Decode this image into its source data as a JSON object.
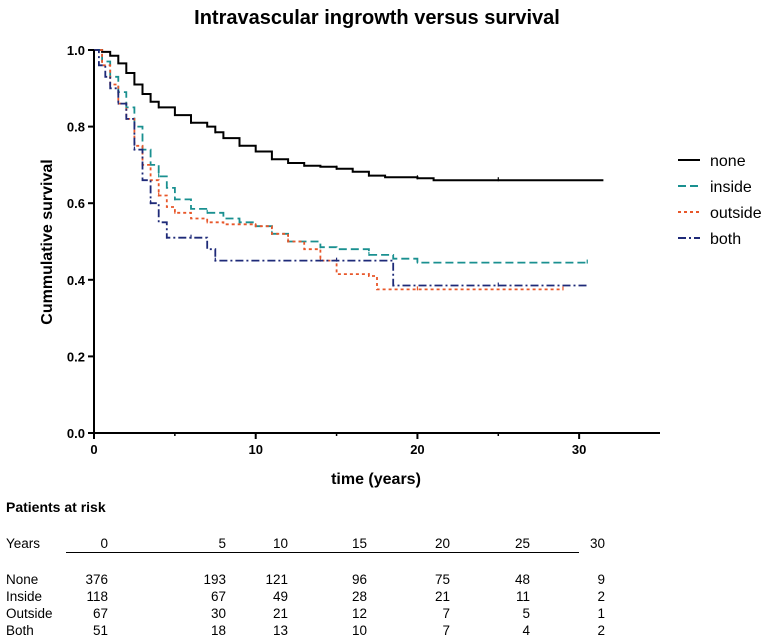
{
  "chart_data": {
    "type": "line",
    "title": "Intravascular ingrowth versus survival",
    "xlabel": "time (years)",
    "ylabel": "Cummulative survival",
    "xlim": [
      0,
      35
    ],
    "ylim": [
      0,
      1.0
    ],
    "xticks": [
      0,
      10,
      20,
      30
    ],
    "yticks": [
      "0.0",
      "0.2",
      "0.4",
      "0.6",
      "0.8",
      "1.0"
    ],
    "grid": false,
    "legend_position": "right",
    "series": [
      {
        "name": "none",
        "color": "#000000",
        "dash": "solid",
        "points": [
          [
            0,
            1.0
          ],
          [
            0.5,
            0.995
          ],
          [
            1,
            0.985
          ],
          [
            1.5,
            0.965
          ],
          [
            2,
            0.94
          ],
          [
            2.5,
            0.91
          ],
          [
            3,
            0.885
          ],
          [
            3.5,
            0.865
          ],
          [
            4,
            0.85
          ],
          [
            5,
            0.83
          ],
          [
            6,
            0.81
          ],
          [
            7,
            0.8
          ],
          [
            7.5,
            0.785
          ],
          [
            8,
            0.77
          ],
          [
            9,
            0.75
          ],
          [
            10,
            0.735
          ],
          [
            11,
            0.715
          ],
          [
            12,
            0.705
          ],
          [
            13,
            0.698
          ],
          [
            14,
            0.695
          ],
          [
            15,
            0.69
          ],
          [
            16,
            0.682
          ],
          [
            17,
            0.672
          ],
          [
            18,
            0.668
          ],
          [
            20,
            0.665
          ],
          [
            21,
            0.66
          ],
          [
            25,
            0.66
          ],
          [
            31.5,
            0.66
          ]
        ]
      },
      {
        "name": "inside",
        "color": "#1a9090",
        "dash": "dash",
        "points": [
          [
            0,
            1.0
          ],
          [
            0.5,
            0.97
          ],
          [
            1,
            0.93
          ],
          [
            1.5,
            0.89
          ],
          [
            2,
            0.85
          ],
          [
            2.5,
            0.8
          ],
          [
            3,
            0.74
          ],
          [
            3.5,
            0.7
          ],
          [
            4,
            0.67
          ],
          [
            4.5,
            0.64
          ],
          [
            5,
            0.61
          ],
          [
            6,
            0.585
          ],
          [
            7,
            0.575
          ],
          [
            8,
            0.56
          ],
          [
            9,
            0.55
          ],
          [
            10,
            0.54
          ],
          [
            11,
            0.52
          ],
          [
            12,
            0.5
          ],
          [
            14,
            0.485
          ],
          [
            15,
            0.48
          ],
          [
            17,
            0.465
          ],
          [
            18.5,
            0.455
          ],
          [
            20,
            0.445
          ],
          [
            25,
            0.445
          ],
          [
            30.5,
            0.445
          ]
        ]
      },
      {
        "name": "outside",
        "color": "#e8572a",
        "dash": "dot",
        "points": [
          [
            0,
            1.0
          ],
          [
            0.5,
            0.96
          ],
          [
            1,
            0.91
          ],
          [
            1.5,
            0.86
          ],
          [
            2,
            0.82
          ],
          [
            2.5,
            0.75
          ],
          [
            3,
            0.7
          ],
          [
            3.5,
            0.66
          ],
          [
            4,
            0.62
          ],
          [
            4.5,
            0.59
          ],
          [
            5,
            0.575
          ],
          [
            6,
            0.56
          ],
          [
            7,
            0.55
          ],
          [
            8,
            0.545
          ],
          [
            10,
            0.54
          ],
          [
            11,
            0.52
          ],
          [
            12,
            0.5
          ],
          [
            13,
            0.48
          ],
          [
            14,
            0.45
          ],
          [
            15,
            0.415
          ],
          [
            17,
            0.41
          ],
          [
            17.5,
            0.375
          ],
          [
            20,
            0.375
          ],
          [
            25,
            0.375
          ],
          [
            29,
            0.375
          ]
        ]
      },
      {
        "name": "both",
        "color": "#1e2a78",
        "dash": "dashdot",
        "points": [
          [
            0,
            1.0
          ],
          [
            0.3,
            0.96
          ],
          [
            0.7,
            0.93
          ],
          [
            1,
            0.9
          ],
          [
            1.5,
            0.86
          ],
          [
            2,
            0.82
          ],
          [
            2.5,
            0.74
          ],
          [
            3,
            0.66
          ],
          [
            3.5,
            0.6
          ],
          [
            4,
            0.55
          ],
          [
            4.5,
            0.51
          ],
          [
            5,
            0.51
          ],
          [
            6,
            0.51
          ],
          [
            7,
            0.48
          ],
          [
            7.5,
            0.45
          ],
          [
            10,
            0.45
          ],
          [
            15,
            0.45
          ],
          [
            18,
            0.45
          ],
          [
            18.5,
            0.385
          ],
          [
            20,
            0.385
          ],
          [
            25,
            0.385
          ],
          [
            30.5,
            0.385
          ]
        ]
      }
    ]
  },
  "risk_table": {
    "title": "Patients at risk",
    "header_label": "Years",
    "years": [
      "0",
      "5",
      "10",
      "15",
      "20",
      "25",
      "30"
    ],
    "rows": [
      {
        "label": "None",
        "values": [
          "376",
          "193",
          "121",
          "96",
          "75",
          "48",
          "9"
        ]
      },
      {
        "label": "Inside",
        "values": [
          "118",
          "67",
          "49",
          "28",
          "21",
          "11",
          "2"
        ]
      },
      {
        "label": "Outside",
        "values": [
          "67",
          "30",
          "21",
          "12",
          "7",
          "5",
          "1"
        ]
      },
      {
        "label": "Both",
        "values": [
          "51",
          "18",
          "13",
          "10",
          "7",
          "4",
          "2"
        ]
      }
    ]
  }
}
